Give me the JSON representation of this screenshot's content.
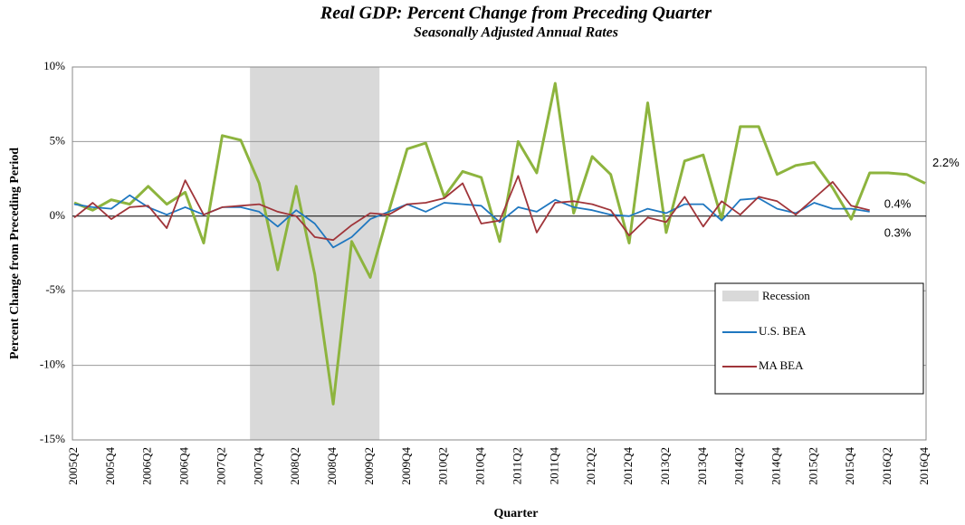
{
  "chart_data": {
    "type": "line",
    "title": "Real GDP: Percent Change from Preceding Quarter",
    "subtitle": "Seasonally Adjusted Annual Rates",
    "x_label": "Quarter",
    "y_label": "Percent Change from Preceding Period",
    "categories": [
      "2005Q2",
      null,
      "2005Q4",
      null,
      "2006Q2",
      null,
      "2006Q4",
      null,
      "2007Q2",
      null,
      "2007Q4",
      null,
      "2008Q2",
      null,
      "2008Q4",
      null,
      "2009Q2",
      null,
      "2009Q4",
      null,
      "2010Q2",
      null,
      "2010Q4",
      null,
      "2011Q2",
      null,
      "2011Q4",
      null,
      "2012Q2",
      null,
      "2012Q4",
      null,
      "2013Q2",
      null,
      "2013Q4",
      null,
      "2014Q2",
      null,
      "2014Q4",
      null,
      "2015Q2",
      null,
      "2015Q4",
      null,
      "2016Q2",
      null,
      "2016Q4"
    ],
    "recession": {
      "label": "Recession",
      "start": 10,
      "end": 16,
      "color": "#d9d9d9"
    },
    "series": [
      {
        "color": "#8db43e",
        "width": 3,
        "values": [
          0.9,
          0.4,
          1.1,
          0.8,
          2.0,
          0.8,
          1.6,
          -1.8,
          5.4,
          5.1,
          2.2,
          -3.6,
          2.0,
          -3.9,
          -12.6,
          -1.7,
          -4.1,
          0.3,
          4.5,
          4.9,
          1.3,
          3.0,
          2.6,
          -1.7,
          5.0,
          2.9,
          8.9,
          0.2,
          4.0,
          2.8,
          -1.8,
          7.6,
          -1.1,
          3.7,
          4.1,
          -0.2,
          6.0,
          6.0,
          2.8,
          3.4,
          3.6,
          1.9,
          -0.2,
          2.9,
          2.9,
          2.8,
          2.2
        ],
        "value_labels": [
          null,
          null,
          null,
          null,
          null,
          null,
          null,
          null,
          null,
          null,
          null,
          null,
          null,
          null,
          null,
          null,
          null,
          null,
          null,
          null,
          null,
          null,
          null,
          null,
          null,
          null,
          null,
          null,
          null,
          null,
          null,
          null,
          null,
          null,
          null,
          null,
          null,
          null,
          null,
          null,
          null,
          null,
          null,
          null,
          null,
          null,
          "2.2%"
        ]
      },
      {
        "name": "U.S. BEA",
        "color": "#1f77c0",
        "width": 1.8,
        "values": [
          0.8,
          0.6,
          0.5,
          1.4,
          0.6,
          0.1,
          0.6,
          0.1,
          0.6,
          0.6,
          0.3,
          -0.7,
          0.4,
          -0.5,
          -2.1,
          -1.4,
          -0.2,
          0.3,
          0.8,
          0.3,
          0.9,
          0.8,
          0.7,
          -0.4,
          0.6,
          0.3,
          1.1,
          0.6,
          0.4,
          0.1,
          0.0,
          0.5,
          0.2,
          0.8,
          0.8,
          -0.3,
          1.1,
          1.2,
          0.5,
          0.2,
          0.9,
          0.5,
          0.5,
          0.3,
          null,
          null,
          null
        ],
        "value_labels": [
          null,
          null,
          null,
          null,
          null,
          null,
          null,
          null,
          null,
          null,
          null,
          null,
          null,
          null,
          null,
          null,
          null,
          null,
          null,
          null,
          null,
          null,
          null,
          null,
          null,
          null,
          null,
          null,
          null,
          null,
          null,
          null,
          null,
          null,
          null,
          null,
          null,
          null,
          null,
          null,
          null,
          null,
          null,
          "0.3%",
          null,
          null,
          null
        ]
      },
      {
        "name": "MA BEA",
        "color": "#a0353a",
        "width": 1.8,
        "values": [
          -0.1,
          0.9,
          -0.2,
          0.6,
          0.7,
          -0.8,
          2.4,
          0.1,
          0.6,
          0.7,
          0.8,
          0.3,
          0.0,
          -1.4,
          -1.6,
          -0.6,
          0.2,
          0.1,
          0.8,
          0.9,
          1.2,
          2.2,
          -0.5,
          -0.3,
          2.7,
          -1.1,
          0.9,
          1.0,
          0.8,
          0.4,
          -1.3,
          -0.1,
          -0.4,
          1.3,
          -0.7,
          1.0,
          0.1,
          1.3,
          1.0,
          0.1,
          1.2,
          2.3,
          0.7,
          0.4,
          null,
          null,
          null
        ],
        "value_labels": [
          null,
          null,
          null,
          null,
          null,
          null,
          null,
          null,
          null,
          null,
          null,
          null,
          null,
          null,
          null,
          null,
          null,
          null,
          null,
          null,
          null,
          null,
          null,
          null,
          null,
          null,
          null,
          null,
          null,
          null,
          null,
          null,
          null,
          null,
          null,
          null,
          null,
          null,
          null,
          null,
          null,
          null,
          null,
          "0.4%",
          null,
          null,
          null
        ]
      }
    ],
    "ylim": [
      -15,
      10
    ],
    "yticks": [
      {
        "value": -15,
        "label": "-15%"
      },
      {
        "value": -10,
        "label": "-10%"
      },
      {
        "value": -5,
        "label": "-5%"
      },
      {
        "value": 0,
        "label": "0%"
      },
      {
        "value": 5,
        "label": "5%"
      },
      {
        "value": 10,
        "label": "10%"
      }
    ],
    "grid": true
  }
}
